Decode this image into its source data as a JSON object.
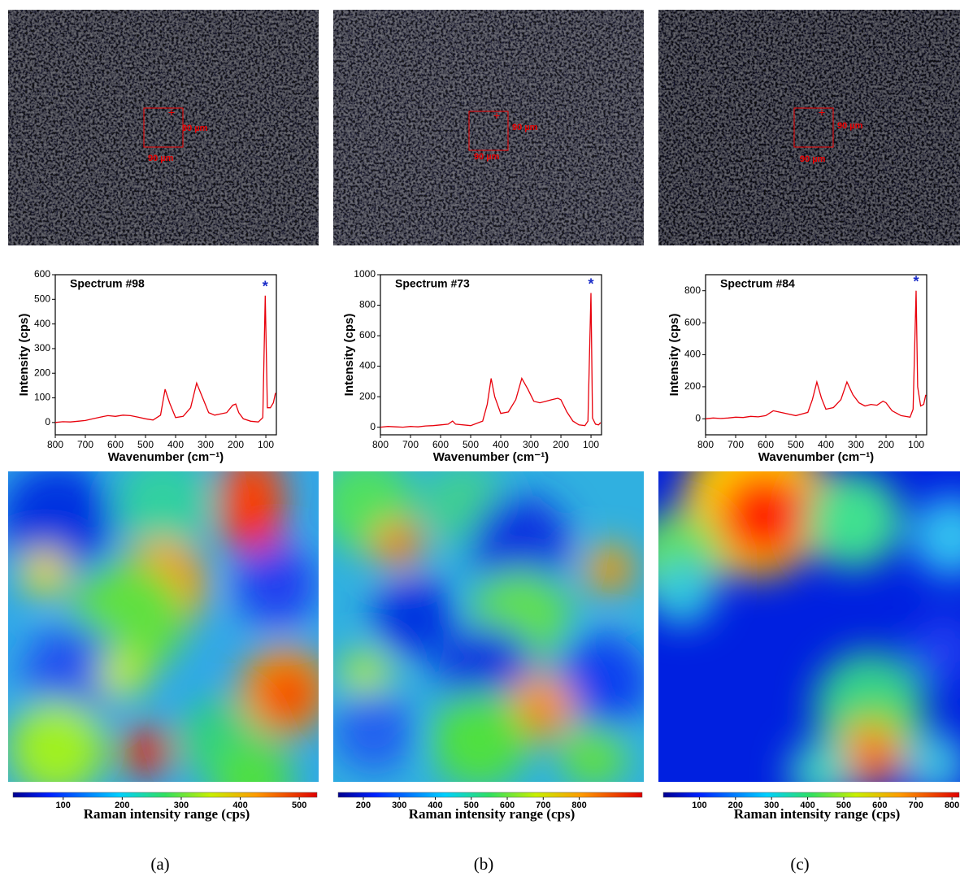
{
  "chart_data": [
    {
      "type": "line",
      "title": "Spectrum #98",
      "x_label": "Wavenumber (cm⁻¹)",
      "y_label": "Intensity (cps)",
      "annotation": "*",
      "x": [
        800,
        775,
        750,
        725,
        700,
        675,
        650,
        625,
        600,
        575,
        550,
        525,
        500,
        475,
        450,
        435,
        420,
        400,
        375,
        350,
        330,
        310,
        290,
        270,
        250,
        230,
        210,
        200,
        190,
        175,
        150,
        125,
        110,
        102,
        95,
        85,
        75,
        68
      ],
      "series": [
        {
          "color": "#e8000b",
          "values": [
            0,
            3,
            2,
            5,
            8,
            15,
            22,
            28,
            25,
            30,
            28,
            22,
            15,
            10,
            30,
            135,
            80,
            20,
            25,
            60,
            160,
            100,
            40,
            30,
            35,
            40,
            70,
            75,
            40,
            15,
            5,
            2,
            20,
            515,
            60,
            60,
            80,
            120
          ]
        }
      ],
      "xlim": [
        800,
        65
      ],
      "xticks": [
        800,
        700,
        600,
        500,
        400,
        300,
        200,
        100
      ],
      "ylim": [
        -50,
        600
      ],
      "yticks": [
        0,
        100,
        200,
        300,
        400,
        500,
        600
      ],
      "scale_labels": [
        "90 µm",
        "90 µm"
      ],
      "colorbar": {
        "label": "Raman intensity range (cps)",
        "lim": [
          15,
          530
        ],
        "ticks": [
          100,
          200,
          300,
          400,
          500
        ]
      },
      "panel_label": "(a)"
    },
    {
      "type": "line",
      "title": "Spectrum #73",
      "x_label": "Wavenumber (cm⁻¹)",
      "y_label": "Intensity (cps)",
      "annotation": "*",
      "x": [
        800,
        775,
        750,
        725,
        700,
        675,
        650,
        625,
        600,
        575,
        560,
        550,
        500,
        460,
        445,
        432,
        420,
        400,
        375,
        350,
        330,
        310,
        290,
        270,
        250,
        230,
        210,
        200,
        180,
        160,
        140,
        120,
        110,
        100,
        95,
        85,
        75,
        68
      ],
      "series": [
        {
          "color": "#e8000b",
          "values": [
            0,
            5,
            2,
            0,
            5,
            2,
            8,
            10,
            15,
            20,
            40,
            20,
            10,
            40,
            150,
            320,
            200,
            90,
            100,
            180,
            320,
            250,
            170,
            160,
            170,
            180,
            190,
            180,
            100,
            40,
            15,
            10,
            40,
            880,
            60,
            20,
            15,
            30
          ]
        }
      ],
      "xlim": [
        800,
        65
      ],
      "xticks": [
        800,
        700,
        600,
        500,
        400,
        300,
        200,
        100
      ],
      "ylim": [
        -50,
        1000
      ],
      "yticks": [
        0,
        200,
        400,
        600,
        800,
        1000
      ],
      "scale_labels": [
        "90 µm",
        "90 µm"
      ],
      "colorbar": {
        "label": "Raman intensity range (cps)",
        "lim": [
          130,
          975
        ],
        "ticks": [
          200,
          300,
          400,
          500,
          600,
          700,
          800
        ]
      },
      "panel_label": "(b)"
    },
    {
      "type": "line",
      "title": "Spectrum #84",
      "x_label": "Wavenumber (cm⁻¹)",
      "y_label": "Intensity (cps)",
      "annotation": "*",
      "x": [
        800,
        775,
        750,
        725,
        700,
        675,
        650,
        625,
        600,
        575,
        550,
        500,
        460,
        445,
        430,
        415,
        400,
        375,
        350,
        330,
        310,
        290,
        270,
        250,
        230,
        210,
        200,
        180,
        150,
        120,
        110,
        100,
        95,
        85,
        75,
        68
      ],
      "series": [
        {
          "color": "#e8000b",
          "values": [
            0,
            5,
            2,
            5,
            10,
            8,
            15,
            12,
            20,
            50,
            40,
            20,
            40,
            120,
            230,
            130,
            60,
            70,
            120,
            230,
            150,
            100,
            80,
            90,
            85,
            110,
            100,
            50,
            20,
            10,
            60,
            800,
            200,
            80,
            90,
            150
          ]
        }
      ],
      "xlim": [
        800,
        65
      ],
      "xticks": [
        800,
        700,
        600,
        500,
        400,
        300,
        200,
        100
      ],
      "ylim": [
        -100,
        900
      ],
      "yticks": [
        0,
        200,
        400,
        600,
        800
      ],
      "scale_labels": [
        "90 µm",
        "90 µm"
      ],
      "colorbar": {
        "label": "Raman intensity range (cps)",
        "lim": [
          0,
          820
        ],
        "ticks": [
          100,
          200,
          300,
          400,
          500,
          600,
          700,
          800
        ]
      },
      "panel_label": "(c)"
    }
  ]
}
